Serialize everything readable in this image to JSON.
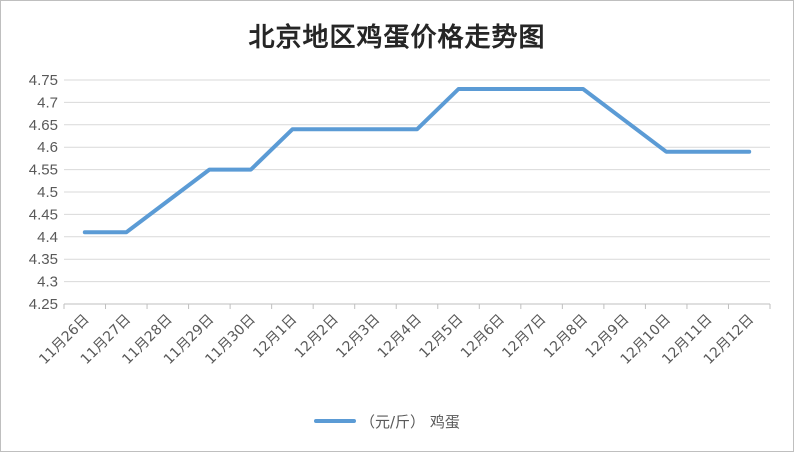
{
  "chart_data": {
    "type": "line",
    "title": "北京地区鸡蛋价格走势图",
    "xlabel": "",
    "ylabel": "",
    "categories": [
      "11月26日",
      "11月27日",
      "11月28日",
      "11月29日",
      "11月30日",
      "12月1日",
      "12月2日",
      "12月3日",
      "12月4日",
      "12月5日",
      "12月6日",
      "12月7日",
      "12月8日",
      "12月9日",
      "12月10日",
      "12月11日",
      "12月12日"
    ],
    "series": [
      {
        "name": "（元/斤） 鸡蛋",
        "values": [
          4.41,
          4.41,
          4.48,
          4.55,
          4.55,
          4.64,
          4.64,
          4.64,
          4.64,
          4.73,
          4.73,
          4.73,
          4.73,
          4.66,
          4.59,
          4.59,
          4.59
        ],
        "color": "#5b9bd5"
      }
    ],
    "ylim": [
      4.25,
      4.75
    ],
    "yticks": [
      "4.25",
      "4.3",
      "4.35",
      "4.4",
      "4.45",
      "4.5",
      "4.55",
      "4.6",
      "4.65",
      "4.7",
      "4.75"
    ],
    "grid": true,
    "legend": "bottom"
  }
}
